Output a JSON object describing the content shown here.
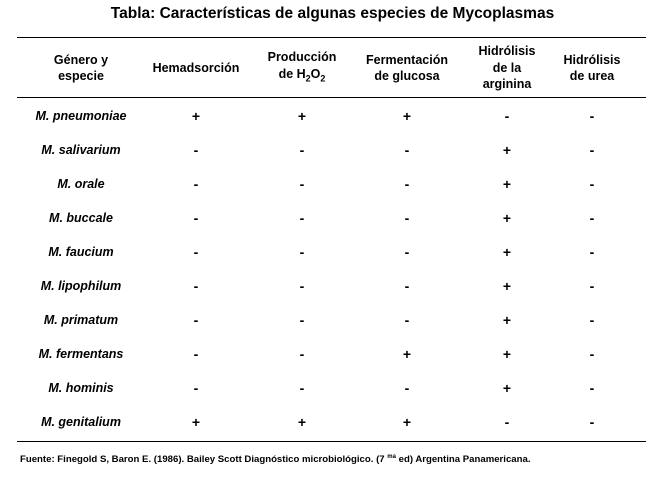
{
  "title": "Tabla: Características de algunas especies de Mycoplasmas",
  "headers": {
    "species": "Género y\nespecie",
    "hemadsorcion": "Hemadsorción",
    "produccion_line1": "Producción",
    "produccion_line2_prefix": "de H",
    "produccion_sub1": "2",
    "produccion_mid": "O",
    "produccion_sub2": "2",
    "fermentacion": "Fermentación\nde glucosa",
    "arginina": "Hidrólisis\nde la\narginina",
    "urea": "Hidrólisis\nde urea"
  },
  "rows": [
    {
      "species": "M. pneumoniae",
      "hemadsorcion": "+",
      "produccion": "+",
      "fermentacion": "+",
      "arginina": "-",
      "urea": "-"
    },
    {
      "species": "M. salivarium",
      "hemadsorcion": "-",
      "produccion": "-",
      "fermentacion": "-",
      "arginina": "+",
      "urea": "-"
    },
    {
      "species": "M. orale",
      "hemadsorcion": "-",
      "produccion": "-",
      "fermentacion": "-",
      "arginina": "+",
      "urea": "-"
    },
    {
      "species": "M. buccale",
      "hemadsorcion": "-",
      "produccion": "-",
      "fermentacion": "-",
      "arginina": "+",
      "urea": "-"
    },
    {
      "species": "M. faucium",
      "hemadsorcion": "-",
      "produccion": "-",
      "fermentacion": "-",
      "arginina": "+",
      "urea": "-"
    },
    {
      "species": "M. lipophilum",
      "hemadsorcion": "-",
      "produccion": "-",
      "fermentacion": "-",
      "arginina": "+",
      "urea": "-"
    },
    {
      "species": "M. primatum",
      "hemadsorcion": "-",
      "produccion": "-",
      "fermentacion": "-",
      "arginina": "+",
      "urea": "-"
    },
    {
      "species": "M. fermentans",
      "hemadsorcion": "-",
      "produccion": "-",
      "fermentacion": "+",
      "arginina": "+",
      "urea": "-"
    },
    {
      "species": "M. hominis",
      "hemadsorcion": "-",
      "produccion": "-",
      "fermentacion": "-",
      "arginina": "+",
      "urea": "-"
    },
    {
      "species": "M. genitalium",
      "hemadsorcion": "+",
      "produccion": "+",
      "fermentacion": "+",
      "arginina": "-",
      "urea": "-"
    }
  ],
  "footer": {
    "before_sup": "Fuente: Finegold S, Baron E.  (1986). Bailey Scott Diagnóstico microbiológico. (7 ",
    "sup": "ma",
    "after_sup": " ed)  Argentina Panamericana."
  }
}
